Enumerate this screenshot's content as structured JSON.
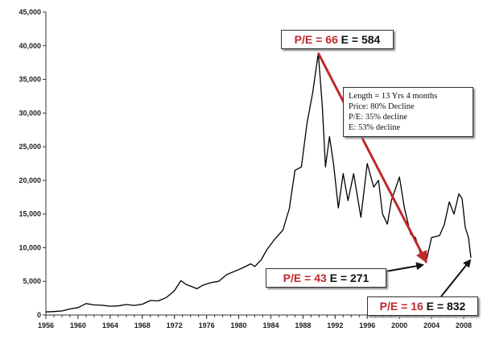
{
  "chart_data": {
    "type": "line",
    "title": "",
    "xlabel": "",
    "ylabel": "",
    "xlim": [
      1956,
      2009
    ],
    "ylim": [
      0,
      45000
    ],
    "y_ticks": [
      0,
      5000,
      10000,
      15000,
      20000,
      25000,
      30000,
      35000,
      40000,
      45000
    ],
    "y_tick_labels": [
      "0",
      "5,000",
      "10,000",
      "15,000",
      "20,000",
      "25,000",
      "30,000",
      "35,000",
      "40,000",
      "45,000"
    ],
    "x_ticks": [
      1956,
      1960,
      1964,
      1968,
      1972,
      1976,
      1980,
      1984,
      1988,
      1992,
      1996,
      2000,
      2004,
      2008
    ],
    "x_tick_labels": [
      "1956",
      "1960",
      "1964",
      "1968",
      "1972",
      "1976",
      "1980",
      "1984",
      "1988",
      "1992",
      "1996",
      "2000",
      "2004",
      "2008"
    ],
    "grid": false,
    "line_color": "#000000",
    "trend_arrow": {
      "from": [
        1989.9,
        38900
      ],
      "to": [
        2003.3,
        8000
      ],
      "color": "#c0282d"
    },
    "series": [
      {
        "values": [
          [
            1956.0,
            450
          ],
          [
            1957.0,
            520
          ],
          [
            1958.0,
            600
          ],
          [
            1959.0,
            900
          ],
          [
            1960.0,
            1100
          ],
          [
            1961.0,
            1700
          ],
          [
            1962.0,
            1500
          ],
          [
            1963.0,
            1450
          ],
          [
            1964.0,
            1300
          ],
          [
            1965.0,
            1350
          ],
          [
            1966.0,
            1550
          ],
          [
            1967.0,
            1420
          ],
          [
            1968.0,
            1600
          ],
          [
            1969.0,
            2150
          ],
          [
            1970.0,
            2100
          ],
          [
            1971.0,
            2600
          ],
          [
            1972.0,
            3600
          ],
          [
            1972.8,
            5100
          ],
          [
            1973.5,
            4500
          ],
          [
            1974.0,
            4300
          ],
          [
            1974.8,
            3900
          ],
          [
            1975.5,
            4400
          ],
          [
            1976.5,
            4800
          ],
          [
            1977.5,
            5000
          ],
          [
            1978.5,
            6000
          ],
          [
            1979.5,
            6500
          ],
          [
            1980.5,
            7000
          ],
          [
            1981.5,
            7600
          ],
          [
            1982.0,
            7200
          ],
          [
            1982.8,
            8200
          ],
          [
            1983.5,
            9700
          ],
          [
            1984.5,
            11300
          ],
          [
            1985.5,
            12600
          ],
          [
            1986.3,
            15800
          ],
          [
            1987.0,
            21500
          ],
          [
            1987.8,
            22000
          ],
          [
            1988.5,
            28500
          ],
          [
            1989.2,
            33000
          ],
          [
            1989.9,
            38900
          ],
          [
            1990.4,
            31000
          ],
          [
            1990.8,
            22000
          ],
          [
            1991.3,
            26500
          ],
          [
            1991.8,
            22500
          ],
          [
            1992.4,
            15900
          ],
          [
            1993.0,
            21000
          ],
          [
            1993.6,
            17000
          ],
          [
            1994.3,
            21000
          ],
          [
            1995.2,
            14500
          ],
          [
            1996.0,
            22500
          ],
          [
            1996.8,
            19000
          ],
          [
            1997.4,
            20000
          ],
          [
            1997.9,
            15000
          ],
          [
            1998.5,
            13500
          ],
          [
            1999.0,
            17000
          ],
          [
            2000.0,
            20500
          ],
          [
            2000.6,
            16000
          ],
          [
            2001.4,
            12000
          ],
          [
            2002.0,
            11500
          ],
          [
            2002.6,
            9200
          ],
          [
            2003.3,
            7800
          ],
          [
            2004.0,
            11500
          ],
          [
            2005.0,
            11800
          ],
          [
            2005.6,
            13500
          ],
          [
            2006.2,
            16800
          ],
          [
            2006.8,
            15000
          ],
          [
            2007.4,
            18000
          ],
          [
            2007.8,
            17300
          ],
          [
            2008.2,
            13000
          ],
          [
            2008.6,
            11500
          ],
          [
            2008.9,
            8500
          ]
        ]
      }
    ],
    "annotations": [
      {
        "red": "P/E = 66",
        "black": "E = 584",
        "anchor_x": 1989.9,
        "anchor_y": 38900
      },
      {
        "red": "P/E = 43",
        "black": "E = 271",
        "anchor_x": 2003.3,
        "anchor_y": 7800
      },
      {
        "red": "P/E = 16",
        "black": "E = 832",
        "anchor_x": 2008.9,
        "anchor_y": 8600
      }
    ],
    "info_box": [
      "Length = 13 Yrs 4 months",
      "Price:  80% Decline",
      "P/E: 35% decline",
      "E: 53% decline"
    ]
  }
}
